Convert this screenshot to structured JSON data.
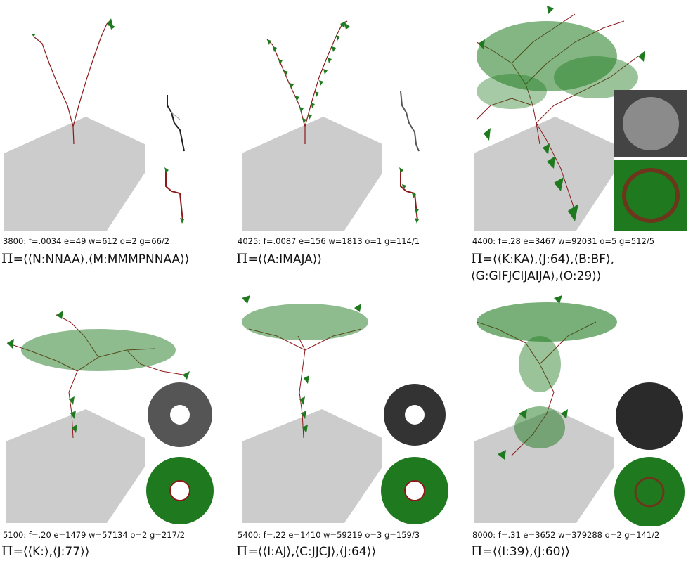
{
  "panels": [
    {
      "stats": "3800:  f=.0034  e=49  w=612  o=2  g=66/2",
      "pi": "Π",
      "formula": "=⟨⟨N:NNAA⟩,⟨M:MMMPNNAA⟩⟩",
      "formula2": ""
    },
    {
      "stats": "4025:  f=.0087  e=156  w=1813  o=1  g=114/1",
      "pi": "Π",
      "formula": "=⟨⟨A:IMAJA⟩⟩",
      "formula2": ""
    },
    {
      "stats": "4400:  f=.28  e=3467  w=92031  o=5  g=512/5",
      "pi": "Π",
      "formula": "=⟨⟨K:KA⟩,⟨J:64⟩,⟨B:BF⟩,",
      "formula2": "⟨G:GIFJCIJAIJA⟩,⟨O:29⟩⟩"
    },
    {
      "stats": "5100:  f=.20  e=1479  w=57134  o=2  g=217/2",
      "pi": "Π",
      "formula": "=⟨⟨K:⟩,⟨J:77⟩⟩",
      "formula2": ""
    },
    {
      "stats": "5400:  f=.22  e=1410  w=59219  o=3  g=159/3",
      "pi": "Π",
      "formula": "=⟨⟨I:AJ⟩,⟨C:JJCJ⟩,⟨J:64⟩⟩",
      "formula2": ""
    },
    {
      "stats": "8000:  f=.31  e=3652  w=379288  o=2  g=141/2",
      "pi": "Π",
      "formula": "=⟨⟨I:39⟩,⟨J:60⟩⟩",
      "formula2": ""
    }
  ],
  "colors": {
    "ground": "#cccccc",
    "stem": "#8b1a1a",
    "leaf": "#1f7a1f",
    "shadow_dark": "#222222",
    "shadow_light": "#999999"
  }
}
